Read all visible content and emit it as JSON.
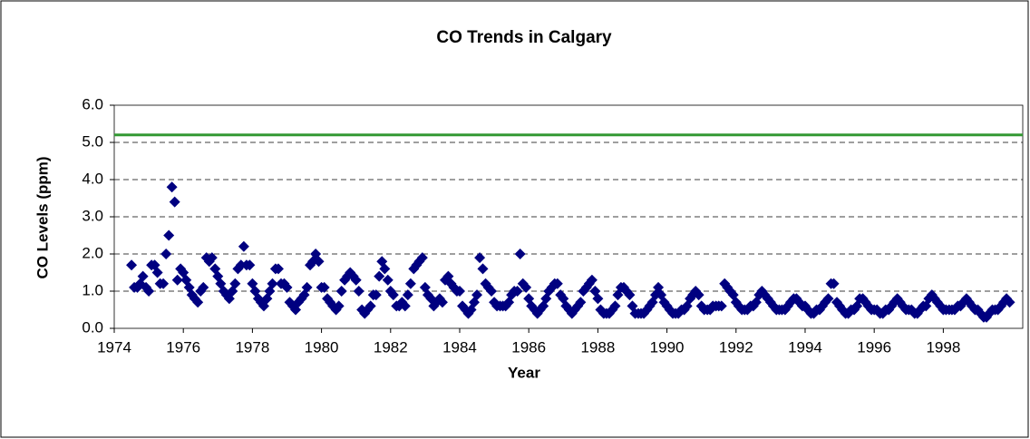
{
  "chart_data": {
    "type": "scatter",
    "title": "CO Trends in Calgary",
    "x_label": "Year",
    "y_label": "CO Levels (ppm)",
    "xlim": [
      1974,
      2000.3
    ],
    "xticks": [
      1974,
      1976,
      1978,
      1980,
      1982,
      1984,
      1986,
      1988,
      1990,
      1992,
      1994,
      1996,
      1998
    ],
    "ylim": [
      0,
      6
    ],
    "yticks": [
      {
        "value": 0,
        "label": "0.0"
      },
      {
        "value": 1,
        "label": "1.0"
      },
      {
        "value": 2,
        "label": "2.0"
      },
      {
        "value": 3,
        "label": "3.0"
      },
      {
        "value": 4,
        "label": "4.0"
      },
      {
        "value": 5,
        "label": "5.0"
      },
      {
        "value": 6,
        "label": "6.0"
      }
    ],
    "grid": true,
    "reference_line": {
      "value": 5.2,
      "color": "#339933"
    },
    "series": [
      {
        "color": "#000080",
        "x": [
          1974.5,
          1974.58,
          1974.67,
          1974.75,
          1974.83,
          1974.92,
          1975.0,
          1975.08,
          1975.17,
          1975.25,
          1975.33,
          1975.42,
          1975.5,
          1975.58,
          1975.67,
          1975.75,
          1975.83,
          1975.92,
          1976.0,
          1976.08,
          1976.17,
          1976.25,
          1976.33,
          1976.42,
          1976.5,
          1976.58,
          1976.67,
          1976.75,
          1976.83,
          1976.92,
          1977.0,
          1977.08,
          1977.17,
          1977.25,
          1977.33,
          1977.42,
          1977.5,
          1977.58,
          1977.67,
          1977.75,
          1977.83,
          1977.92,
          1978.0,
          1978.08,
          1978.17,
          1978.25,
          1978.33,
          1978.42,
          1978.5,
          1978.58,
          1978.67,
          1978.75,
          1978.83,
          1978.92,
          1979.0,
          1979.08,
          1979.17,
          1979.25,
          1979.33,
          1979.42,
          1979.5,
          1979.58,
          1979.67,
          1979.75,
          1979.83,
          1979.92,
          1980.0,
          1980.08,
          1980.17,
          1980.25,
          1980.33,
          1980.42,
          1980.5,
          1980.58,
          1980.67,
          1980.75,
          1980.83,
          1980.92,
          1981.0,
          1981.08,
          1981.17,
          1981.25,
          1981.33,
          1981.42,
          1981.5,
          1981.58,
          1981.67,
          1981.75,
          1981.83,
          1981.92,
          1982.0,
          1982.08,
          1982.17,
          1982.25,
          1982.33,
          1982.42,
          1982.5,
          1982.58,
          1982.67,
          1982.75,
          1982.83,
          1982.92,
          1983.0,
          1983.08,
          1983.17,
          1983.25,
          1983.33,
          1983.42,
          1983.5,
          1983.58,
          1983.67,
          1983.75,
          1983.83,
          1983.92,
          1984.0,
          1984.08,
          1984.17,
          1984.25,
          1984.33,
          1984.42,
          1984.5,
          1984.58,
          1984.67,
          1984.75,
          1984.83,
          1984.92,
          1985.0,
          1985.08,
          1985.17,
          1985.25,
          1985.33,
          1985.42,
          1985.5,
          1985.58,
          1985.67,
          1985.75,
          1985.83,
          1985.92,
          1986.0,
          1986.08,
          1986.17,
          1986.25,
          1986.33,
          1986.42,
          1986.5,
          1986.58,
          1986.67,
          1986.75,
          1986.83,
          1986.92,
          1987.0,
          1987.08,
          1987.17,
          1987.25,
          1987.33,
          1987.42,
          1987.5,
          1987.58,
          1987.67,
          1987.75,
          1987.83,
          1987.92,
          1988.0,
          1988.08,
          1988.17,
          1988.25,
          1988.33,
          1988.42,
          1988.5,
          1988.58,
          1988.67,
          1988.75,
          1988.83,
          1988.92,
          1989.0,
          1989.08,
          1989.17,
          1989.25,
          1989.33,
          1989.42,
          1989.5,
          1989.58,
          1989.67,
          1989.75,
          1989.83,
          1989.92,
          1990.0,
          1990.08,
          1990.17,
          1990.25,
          1990.33,
          1990.42,
          1990.5,
          1990.58,
          1990.67,
          1990.75,
          1990.83,
          1990.92,
          1991.0,
          1991.08,
          1991.17,
          1991.25,
          1991.33,
          1991.42,
          1991.5,
          1991.58,
          1991.67,
          1991.75,
          1991.83,
          1991.92,
          1992.0,
          1992.08,
          1992.17,
          1992.25,
          1992.33,
          1992.42,
          1992.5,
          1992.58,
          1992.67,
          1992.75,
          1992.83,
          1992.92,
          1993.0,
          1993.08,
          1993.17,
          1993.25,
          1993.33,
          1993.42,
          1993.5,
          1993.58,
          1993.67,
          1993.75,
          1993.83,
          1993.92,
          1994.0,
          1994.08,
          1994.17,
          1994.25,
          1994.33,
          1994.42,
          1994.5,
          1994.58,
          1994.67,
          1994.75,
          1994.83,
          1994.92,
          1995.0,
          1995.08,
          1995.17,
          1995.25,
          1995.33,
          1995.42,
          1995.5,
          1995.58,
          1995.67,
          1995.75,
          1995.83,
          1995.92,
          1996.0,
          1996.08,
          1996.17,
          1996.25,
          1996.33,
          1996.42,
          1996.5,
          1996.58,
          1996.67,
          1996.75,
          1996.83,
          1996.92,
          1997.0,
          1997.08,
          1997.17,
          1997.25,
          1997.33,
          1997.42,
          1997.5,
          1997.58,
          1997.67,
          1997.75,
          1997.83,
          1997.92,
          1998.0,
          1998.08,
          1998.17,
          1998.25,
          1998.33,
          1998.42,
          1998.5,
          1998.58,
          1998.67,
          1998.75,
          1998.83,
          1998.92,
          1999.0,
          1999.08,
          1999.17,
          1999.25,
          1999.33,
          1999.42,
          1999.5,
          1999.58,
          1999.67,
          1999.75,
          1999.83,
          1999.92
        ],
        "values": [
          1.7,
          1.1,
          1.1,
          1.2,
          1.4,
          1.1,
          1.0,
          1.7,
          1.7,
          1.5,
          1.2,
          1.2,
          2.0,
          2.5,
          3.8,
          3.4,
          1.3,
          1.6,
          1.5,
          1.3,
          1.1,
          0.9,
          0.8,
          0.7,
          1.0,
          1.1,
          1.9,
          1.8,
          1.9,
          1.6,
          1.4,
          1.2,
          1.0,
          0.9,
          0.8,
          1.0,
          1.2,
          1.6,
          1.7,
          2.2,
          1.7,
          1.7,
          1.2,
          1.0,
          0.8,
          0.7,
          0.6,
          0.8,
          1.0,
          1.2,
          1.6,
          1.6,
          1.2,
          1.2,
          1.1,
          0.7,
          0.6,
          0.5,
          0.7,
          0.8,
          0.9,
          1.1,
          1.7,
          1.8,
          2.0,
          1.8,
          1.1,
          1.1,
          0.8,
          0.7,
          0.6,
          0.5,
          0.6,
          1.0,
          1.3,
          1.4,
          1.5,
          1.4,
          1.3,
          1.0,
          0.5,
          0.4,
          0.5,
          0.6,
          0.9,
          0.9,
          1.4,
          1.8,
          1.6,
          1.3,
          1.0,
          0.9,
          0.6,
          0.6,
          0.7,
          0.6,
          0.9,
          1.2,
          1.6,
          1.7,
          1.8,
          1.9,
          1.1,
          0.9,
          0.8,
          0.6,
          0.7,
          0.8,
          0.7,
          1.3,
          1.4,
          1.2,
          1.1,
          1.0,
          1.0,
          0.6,
          0.5,
          0.4,
          0.5,
          0.7,
          0.9,
          1.9,
          1.6,
          1.2,
          1.1,
          1.0,
          0.7,
          0.6,
          0.6,
          0.6,
          0.6,
          0.7,
          0.9,
          1.0,
          1.0,
          2.0,
          1.2,
          1.1,
          0.8,
          0.6,
          0.5,
          0.4,
          0.5,
          0.6,
          0.8,
          1.0,
          1.1,
          1.2,
          1.2,
          0.9,
          0.8,
          0.6,
          0.5,
          0.4,
          0.5,
          0.6,
          0.7,
          1.0,
          1.1,
          1.2,
          1.3,
          1.0,
          0.8,
          0.5,
          0.4,
          0.4,
          0.4,
          0.5,
          0.6,
          0.9,
          1.1,
          1.1,
          1.0,
          0.9,
          0.6,
          0.4,
          0.4,
          0.4,
          0.4,
          0.5,
          0.6,
          0.7,
          0.9,
          1.1,
          0.9,
          0.7,
          0.6,
          0.5,
          0.4,
          0.4,
          0.4,
          0.5,
          0.5,
          0.6,
          0.8,
          0.9,
          1.0,
          0.9,
          0.6,
          0.5,
          0.5,
          0.5,
          0.6,
          0.6,
          0.6,
          0.6,
          1.2,
          1.1,
          1.0,
          0.9,
          0.7,
          0.6,
          0.5,
          0.5,
          0.5,
          0.6,
          0.6,
          0.7,
          0.9,
          1.0,
          0.9,
          0.8,
          0.7,
          0.6,
          0.5,
          0.5,
          0.5,
          0.5,
          0.6,
          0.7,
          0.8,
          0.8,
          0.7,
          0.6,
          0.6,
          0.5,
          0.4,
          0.4,
          0.5,
          0.5,
          0.6,
          0.7,
          0.8,
          1.2,
          1.2,
          0.7,
          0.6,
          0.5,
          0.4,
          0.4,
          0.5,
          0.5,
          0.6,
          0.8,
          0.8,
          0.7,
          0.6,
          0.5,
          0.5,
          0.5,
          0.4,
          0.4,
          0.5,
          0.5,
          0.6,
          0.7,
          0.8,
          0.7,
          0.6,
          0.5,
          0.5,
          0.5,
          0.4,
          0.4,
          0.5,
          0.6,
          0.6,
          0.8,
          0.9,
          0.8,
          0.7,
          0.6,
          0.5,
          0.5,
          0.5,
          0.5,
          0.5,
          0.6,
          0.6,
          0.7,
          0.8,
          0.7,
          0.6,
          0.5,
          0.5,
          0.4,
          0.3,
          0.3,
          0.4,
          0.5,
          0.5,
          0.5,
          0.6,
          0.7,
          0.8,
          0.7
        ]
      }
    ]
  }
}
